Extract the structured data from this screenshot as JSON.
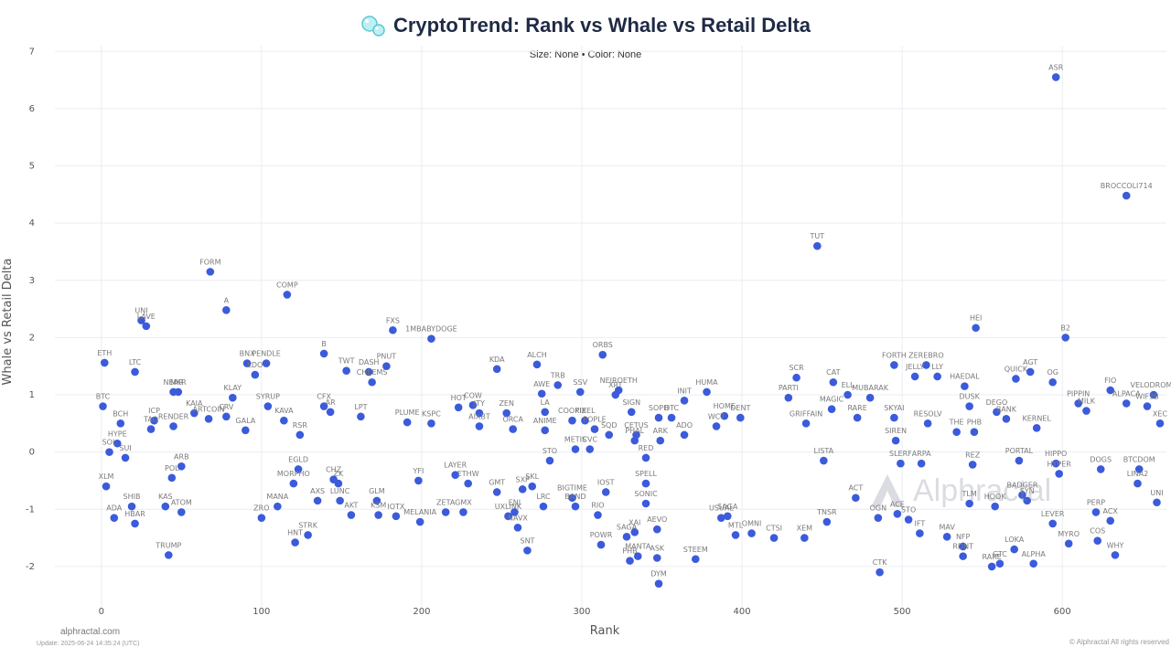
{
  "header": {
    "title": "CryptoTrend: Rank vs Whale vs Retail Delta",
    "subtitle": "Size: None • Color: None"
  },
  "footer": {
    "brand": "alphractal.com",
    "update": "Update: 2025-06-24 14:35:24 (UTC)",
    "copyright": "© Alphractal All rights reserved",
    "watermark": "Alphractal"
  },
  "colors": {
    "point": "#3b5bdb",
    "grid": "#e9edf3",
    "title": "#1f2a44"
  },
  "chart_data": {
    "type": "scatter",
    "title": "CryptoTrend: Rank vs Whale vs Retail Delta",
    "subtitle": "Size: None • Color: None",
    "xlabel": "Rank",
    "ylabel": "Whale vs Retail Delta",
    "xlim": [
      -29,
      665
    ],
    "ylim": [
      -2.8,
      7.1
    ],
    "xticks": [
      0,
      100,
      200,
      300,
      400,
      500,
      600
    ],
    "yticks": [
      -2,
      -1,
      0,
      1,
      2,
      3,
      4,
      5,
      6,
      7
    ],
    "grid": true,
    "points": [
      {
        "label": "ETH",
        "x": 2,
        "y": 1.56
      },
      {
        "label": "BTC",
        "x": 1,
        "y": 0.8
      },
      {
        "label": "BCH",
        "x": 12,
        "y": 0.5
      },
      {
        "label": "HYPE",
        "x": 10,
        "y": 0.15
      },
      {
        "label": "SOL",
        "x": 5,
        "y": 0.0
      },
      {
        "label": "SUI",
        "x": 15,
        "y": -0.1
      },
      {
        "label": "UNI",
        "x": 25,
        "y": 2.3
      },
      {
        "label": "LAVE",
        "x": 28,
        "y": 2.2
      },
      {
        "label": "LTC",
        "x": 21,
        "y": 1.4
      },
      {
        "label": "ADA",
        "x": 8,
        "y": -1.15
      },
      {
        "label": "SHIB",
        "x": 19,
        "y": -0.95
      },
      {
        "label": "HBAR",
        "x": 21,
        "y": -1.25
      },
      {
        "label": "XLM",
        "x": 3,
        "y": -0.6
      },
      {
        "label": "TRUMP",
        "x": 42,
        "y": -1.8
      },
      {
        "label": "KAS",
        "x": 40,
        "y": -0.95
      },
      {
        "label": "ATOM",
        "x": 50,
        "y": -1.05
      },
      {
        "label": "POL",
        "x": 44,
        "y": -0.45
      },
      {
        "label": "ICP",
        "x": 33,
        "y": 0.55
      },
      {
        "label": "TAO",
        "x": 31,
        "y": 0.4
      },
      {
        "label": "FORM",
        "x": 68,
        "y": 3.15
      },
      {
        "label": "A",
        "x": 78,
        "y": 2.48
      },
      {
        "label": "NEAR",
        "x": 45,
        "y": 1.05
      },
      {
        "label": "MKR",
        "x": 48,
        "y": 1.05
      },
      {
        "label": "KAIA",
        "x": 58,
        "y": 0.68
      },
      {
        "label": "RENDER",
        "x": 45,
        "y": 0.45
      },
      {
        "label": "ARB",
        "x": 50,
        "y": -0.25
      },
      {
        "label": "KLAY",
        "x": 82,
        "y": 0.95
      },
      {
        "label": "CRV",
        "x": 78,
        "y": 0.62
      },
      {
        "label": "BNX",
        "x": 91,
        "y": 1.55
      },
      {
        "label": "PENDLE",
        "x": 103,
        "y": 1.55
      },
      {
        "label": "LDO",
        "x": 96,
        "y": 1.35
      },
      {
        "label": "ARTCOIN",
        "x": 67,
        "y": 0.58
      },
      {
        "label": "GALA",
        "x": 90,
        "y": 0.38
      },
      {
        "label": "SYRUP",
        "x": 104,
        "y": 0.8
      },
      {
        "label": "KAVA",
        "x": 114,
        "y": 0.55
      },
      {
        "label": "RSR",
        "x": 124,
        "y": 0.3
      },
      {
        "label": "CFX",
        "x": 139,
        "y": 0.8
      },
      {
        "label": "AR",
        "x": 143,
        "y": 0.7
      },
      {
        "label": "COMP",
        "x": 116,
        "y": 2.75
      },
      {
        "label": "B",
        "x": 139,
        "y": 1.72
      },
      {
        "label": "TWT",
        "x": 153,
        "y": 1.42
      },
      {
        "label": "DASH",
        "x": 167,
        "y": 1.4
      },
      {
        "label": "PNUT",
        "x": 178,
        "y": 1.5
      },
      {
        "label": "CHEEMS",
        "x": 169,
        "y": 1.22
      },
      {
        "label": "FXS",
        "x": 182,
        "y": 2.13
      },
      {
        "label": "1MBABYDOGE",
        "x": 206,
        "y": 1.98
      },
      {
        "label": "LPT",
        "x": 162,
        "y": 0.62
      },
      {
        "label": "EGLD",
        "x": 123,
        "y": -0.3
      },
      {
        "label": "ZRO",
        "x": 100,
        "y": -1.15
      },
      {
        "label": "MANA",
        "x": 110,
        "y": -0.95
      },
      {
        "label": "HNT",
        "x": 121,
        "y": -1.58
      },
      {
        "label": "STRK",
        "x": 129,
        "y": -1.45
      },
      {
        "label": "AXS",
        "x": 135,
        "y": -0.85
      },
      {
        "label": "MORPHO",
        "x": 120,
        "y": -0.55
      },
      {
        "label": "LUNC",
        "x": 149,
        "y": -0.85
      },
      {
        "label": "CHZ",
        "x": 145,
        "y": -0.48
      },
      {
        "label": "ZK",
        "x": 148,
        "y": -0.55
      },
      {
        "label": "MELANIA",
        "x": 199,
        "y": -1.22
      },
      {
        "label": "IOTX",
        "x": 184,
        "y": -1.12
      },
      {
        "label": "KSM",
        "x": 173,
        "y": -1.1
      },
      {
        "label": "GLM",
        "x": 172,
        "y": -0.85
      },
      {
        "label": "YFI",
        "x": 198,
        "y": -0.5
      },
      {
        "label": "AKT",
        "x": 156,
        "y": -1.1
      },
      {
        "label": "ZETA",
        "x": 215,
        "y": -1.05
      },
      {
        "label": "GMX",
        "x": 226,
        "y": -1.05
      },
      {
        "label": "LAYER",
        "x": 221,
        "y": -0.4
      },
      {
        "label": "ETHW",
        "x": 229,
        "y": -0.55
      },
      {
        "label": "PLUME",
        "x": 191,
        "y": 0.52
      },
      {
        "label": "KSPC",
        "x": 206,
        "y": 0.5
      },
      {
        "label": "HOT",
        "x": 223,
        "y": 0.78
      },
      {
        "label": "COW",
        "x": 232,
        "y": 0.82
      },
      {
        "label": "JTY",
        "x": 236,
        "y": 0.68
      },
      {
        "label": "AIXBT",
        "x": 236,
        "y": 0.45
      },
      {
        "label": "KDA",
        "x": 247,
        "y": 1.45
      },
      {
        "label": "ALCH",
        "x": 272,
        "y": 1.53
      },
      {
        "label": "ZEN",
        "x": 253,
        "y": 0.68
      },
      {
        "label": "ORCA",
        "x": 257,
        "y": 0.4
      },
      {
        "label": "GMT",
        "x": 247,
        "y": -0.7
      },
      {
        "label": "UXLINK",
        "x": 254,
        "y": -1.12
      },
      {
        "label": "ENJ",
        "x": 258,
        "y": -1.05
      },
      {
        "label": "NAVX",
        "x": 260,
        "y": -1.32
      },
      {
        "label": "SNT",
        "x": 266,
        "y": -1.72
      },
      {
        "label": "SXP",
        "x": 263,
        "y": -0.65
      },
      {
        "label": "SKL",
        "x": 269,
        "y": -0.6
      },
      {
        "label": "LRC",
        "x": 276,
        "y": -0.95
      },
      {
        "label": "BIGTIME",
        "x": 294,
        "y": -0.8
      },
      {
        "label": "BAND",
        "x": 296,
        "y": -0.95
      },
      {
        "label": "TRB",
        "x": 285,
        "y": 1.17
      },
      {
        "label": "AWE",
        "x": 275,
        "y": 1.02
      },
      {
        "label": "LA",
        "x": 277,
        "y": 0.7
      },
      {
        "label": "SSV",
        "x": 299,
        "y": 1.05
      },
      {
        "label": "COOKIE",
        "x": 294,
        "y": 0.55
      },
      {
        "label": "PIXEL",
        "x": 302,
        "y": 0.55
      },
      {
        "label": "ANIME",
        "x": 277,
        "y": 0.38
      },
      {
        "label": "STO",
        "x": 280,
        "y": -0.15
      },
      {
        "label": "METIS",
        "x": 296,
        "y": 0.05
      },
      {
        "label": "CVC",
        "x": 305,
        "y": 0.05
      },
      {
        "label": "POPLE",
        "x": 308,
        "y": 0.4
      },
      {
        "label": "SQD",
        "x": 317,
        "y": 0.3
      },
      {
        "label": "ORBS",
        "x": 313,
        "y": 1.7
      },
      {
        "label": "NEIROETH",
        "x": 323,
        "y": 1.08
      },
      {
        "label": "XRT",
        "x": 321,
        "y": 1.0
      },
      {
        "label": "IOST",
        "x": 315,
        "y": -0.7
      },
      {
        "label": "RIO",
        "x": 310,
        "y": -1.1
      },
      {
        "label": "POWR",
        "x": 312,
        "y": -1.62
      },
      {
        "label": "SAGA",
        "x": 328,
        "y": -1.48
      },
      {
        "label": "XAI",
        "x": 333,
        "y": -1.4
      },
      {
        "label": "AEVO",
        "x": 347,
        "y": -1.35
      },
      {
        "label": "MANTA",
        "x": 335,
        "y": -1.82
      },
      {
        "label": "ASK",
        "x": 347,
        "y": -1.85
      },
      {
        "label": "PHB",
        "x": 330,
        "y": -1.9
      },
      {
        "label": "DYM",
        "x": 348,
        "y": -2.3
      },
      {
        "label": "SONIC",
        "x": 340,
        "y": -0.9
      },
      {
        "label": "SPELL",
        "x": 340,
        "y": -0.55
      },
      {
        "label": "SIGN",
        "x": 331,
        "y": 0.7
      },
      {
        "label": "SOPH",
        "x": 348,
        "y": 0.6
      },
      {
        "label": "CETUS",
        "x": 334,
        "y": 0.3
      },
      {
        "label": "ARK",
        "x": 349,
        "y": 0.2
      },
      {
        "label": "PHAL",
        "x": 333,
        "y": 0.2
      },
      {
        "label": "RED",
        "x": 340,
        "y": -0.1
      },
      {
        "label": "INIT",
        "x": 364,
        "y": 0.9
      },
      {
        "label": "HUMA",
        "x": 378,
        "y": 1.05
      },
      {
        "label": "DTC",
        "x": 356,
        "y": 0.6
      },
      {
        "label": "ADO",
        "x": 364,
        "y": 0.3
      },
      {
        "label": "STEEM",
        "x": 371,
        "y": -1.87
      },
      {
        "label": "WCT",
        "x": 384,
        "y": 0.45
      },
      {
        "label": "HOME",
        "x": 389,
        "y": 0.63
      },
      {
        "label": "DENT",
        "x": 399,
        "y": 0.6
      },
      {
        "label": "USUAL",
        "x": 387,
        "y": -1.15
      },
      {
        "label": "SAGA",
        "x": 391,
        "y": -1.12
      },
      {
        "label": "MTL",
        "x": 396,
        "y": -1.45
      },
      {
        "label": "OMNI",
        "x": 406,
        "y": -1.42
      },
      {
        "label": "CTSI",
        "x": 420,
        "y": -1.5
      },
      {
        "label": "XEM",
        "x": 439,
        "y": -1.5
      },
      {
        "label": "TNSR",
        "x": 453,
        "y": -1.22
      },
      {
        "label": "SCR",
        "x": 434,
        "y": 1.3
      },
      {
        "label": "PARTI",
        "x": 429,
        "y": 0.95
      },
      {
        "label": "GRIFFAIN",
        "x": 440,
        "y": 0.5
      },
      {
        "label": "TUT",
        "x": 447,
        "y": 3.6
      },
      {
        "label": "CAT",
        "x": 457,
        "y": 1.22
      },
      {
        "label": "ELL",
        "x": 466,
        "y": 1.0
      },
      {
        "label": "MUBARAK",
        "x": 480,
        "y": 0.95
      },
      {
        "label": "MAGIC",
        "x": 456,
        "y": 0.75
      },
      {
        "label": "RARE",
        "x": 472,
        "y": 0.6
      },
      {
        "label": "LISTA",
        "x": 451,
        "y": -0.15
      },
      {
        "label": "ACT",
        "x": 471,
        "y": -0.8
      },
      {
        "label": "OGN",
        "x": 485,
        "y": -1.15
      },
      {
        "label": "ACE",
        "x": 497,
        "y": -1.08
      },
      {
        "label": "STO",
        "x": 504,
        "y": -1.18
      },
      {
        "label": "IFT",
        "x": 511,
        "y": -1.42
      },
      {
        "label": "CTK",
        "x": 486,
        "y": -2.1
      },
      {
        "label": "FORTH",
        "x": 495,
        "y": 1.52
      },
      {
        "label": "ZEREBRO",
        "x": 515,
        "y": 1.52
      },
      {
        "label": "JELLY",
        "x": 508,
        "y": 1.32
      },
      {
        "label": "LLY",
        "x": 522,
        "y": 1.32
      },
      {
        "label": "SKYAI",
        "x": 495,
        "y": 0.6
      },
      {
        "label": "RESOLV",
        "x": 516,
        "y": 0.5
      },
      {
        "label": "SIREN",
        "x": 496,
        "y": 0.2
      },
      {
        "label": "SLERF",
        "x": 499,
        "y": -0.2
      },
      {
        "label": "ARPA",
        "x": 512,
        "y": -0.2
      },
      {
        "label": "HAEDAL",
        "x": 539,
        "y": 1.15
      },
      {
        "label": "DUSK",
        "x": 542,
        "y": 0.8
      },
      {
        "label": "THE",
        "x": 534,
        "y": 0.35
      },
      {
        "label": "PHB",
        "x": 545,
        "y": 0.35
      },
      {
        "label": "REZ",
        "x": 544,
        "y": -0.22
      },
      {
        "label": "TLM",
        "x": 542,
        "y": -0.9
      },
      {
        "label": "HOOK",
        "x": 558,
        "y": -0.95
      },
      {
        "label": "MAV",
        "x": 528,
        "y": -1.48
      },
      {
        "label": "NFP",
        "x": 538,
        "y": -1.65
      },
      {
        "label": "RDNT",
        "x": 538,
        "y": -1.82
      },
      {
        "label": "RARE",
        "x": 556,
        "y": -2.0
      },
      {
        "label": "GTC",
        "x": 561,
        "y": -1.95
      },
      {
        "label": "LOKA",
        "x": 570,
        "y": -1.7
      },
      {
        "label": "ALPHA",
        "x": 582,
        "y": -1.95
      },
      {
        "label": "HEI",
        "x": 546,
        "y": 2.17
      },
      {
        "label": "QUICK",
        "x": 571,
        "y": 1.28
      },
      {
        "label": "AGT",
        "x": 580,
        "y": 1.4
      },
      {
        "label": "DEGO",
        "x": 559,
        "y": 0.7
      },
      {
        "label": "BANK",
        "x": 565,
        "y": 0.58
      },
      {
        "label": "KERNEL",
        "x": 584,
        "y": 0.42
      },
      {
        "label": "PORTAL",
        "x": 573,
        "y": -0.15
      },
      {
        "label": "BADGER",
        "x": 575,
        "y": -0.75
      },
      {
        "label": "SYN",
        "x": 578,
        "y": -0.85
      },
      {
        "label": "PERP",
        "x": 621,
        "y": -1.05
      },
      {
        "label": "LEVER",
        "x": 594,
        "y": -1.25
      },
      {
        "label": "MYRO",
        "x": 604,
        "y": -1.6
      },
      {
        "label": "WHY",
        "x": 633,
        "y": -1.8
      },
      {
        "label": "ASR",
        "x": 596,
        "y": 6.55
      },
      {
        "label": "BROCCOLI714",
        "x": 640,
        "y": 4.48
      },
      {
        "label": "B2",
        "x": 602,
        "y": 2.0
      },
      {
        "label": "OG",
        "x": 594,
        "y": 1.22
      },
      {
        "label": "PIPPIN",
        "x": 610,
        "y": 0.85
      },
      {
        "label": "FIO",
        "x": 630,
        "y": 1.08
      },
      {
        "label": "ALPACA",
        "x": 640,
        "y": 0.85
      },
      {
        "label": "VELODROME",
        "x": 657,
        "y": 1.0
      },
      {
        "label": "MILK",
        "x": 615,
        "y": 0.72
      },
      {
        "label": "WIF3B",
        "x": 653,
        "y": 0.8
      },
      {
        "label": "XEC",
        "x": 661,
        "y": 0.5
      },
      {
        "label": "HIPPO",
        "x": 596,
        "y": -0.2
      },
      {
        "label": "HYPER",
        "x": 598,
        "y": -0.38
      },
      {
        "label": "DOGS",
        "x": 624,
        "y": -0.3
      },
      {
        "label": "BTCDOM",
        "x": 648,
        "y": -0.3
      },
      {
        "label": "LINA2",
        "x": 647,
        "y": -0.55
      },
      {
        "label": "UNI",
        "x": 659,
        "y": -0.88
      },
      {
        "label": "COS",
        "x": 622,
        "y": -1.55
      },
      {
        "label": "ACX",
        "x": 630,
        "y": -1.2
      }
    ]
  }
}
